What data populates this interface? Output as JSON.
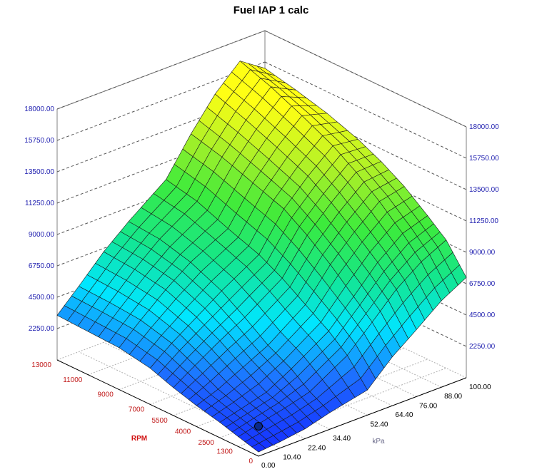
{
  "chart_data": {
    "type": "surface3d",
    "title": "Fuel IAP 1 calc",
    "x_axis": {
      "label": "RPM",
      "tick_labels": [
        "0",
        "1300",
        "2500",
        "4000",
        "5500",
        "7000",
        "9000",
        "11000",
        "13000"
      ],
      "values": [
        0,
        1300,
        2500,
        4000,
        5500,
        7000,
        9000,
        11000,
        13000
      ]
    },
    "y_axis": {
      "label": "kPa",
      "tick_labels": [
        "0.00",
        "10.40",
        "22.40",
        "34.40",
        "52.40",
        "64.40",
        "76.00",
        "88.00",
        "100.00"
      ],
      "values": [
        0,
        10.4,
        22.4,
        34.4,
        52.4,
        64.4,
        76,
        88,
        100
      ]
    },
    "z_axis": {
      "tick_labels": [
        "2250.00",
        "4500.00",
        "6750.00",
        "9000.00",
        "11250.00",
        "13500.00",
        "15750.00",
        "18000.00"
      ],
      "zlim": [
        0,
        18000
      ]
    },
    "z_values_rows_by_rpm": [
      [
        300,
        450,
        700,
        1200,
        1800,
        3500,
        4800,
        6200,
        7200
      ],
      [
        700,
        1100,
        1500,
        2000,
        3600,
        5300,
        7000,
        8300,
        9200
      ],
      [
        1100,
        1500,
        2000,
        3000,
        4700,
        6500,
        8300,
        9700,
        10300
      ],
      [
        1500,
        2100,
        3000,
        3900,
        5800,
        8000,
        9700,
        11200,
        11600
      ],
      [
        2000,
        3000,
        4100,
        5100,
        6900,
        9300,
        11000,
        12500,
        12600
      ],
      [
        2600,
        3800,
        5000,
        6200,
        7800,
        10400,
        12100,
        13600,
        13400
      ],
      [
        3000,
        4400,
        5900,
        7200,
        8600,
        11200,
        13100,
        14700,
        14200
      ],
      [
        3100,
        4600,
        6300,
        7800,
        9500,
        12000,
        14000,
        15700,
        14800
      ],
      [
        3200,
        4700,
        6500,
        8000,
        10000,
        12600,
        14800,
        16500,
        15300
      ]
    ],
    "point_marker": {
      "rpm": 0,
      "kpa": 0,
      "color": "#0a2a8a"
    },
    "grid": true,
    "colors": {
      "low": "#1a3cff",
      "mid": "#00f0ff",
      "high": "#ffff10",
      "rpm_axis": "#d01010",
      "z_axis": "#2020b0"
    }
  }
}
